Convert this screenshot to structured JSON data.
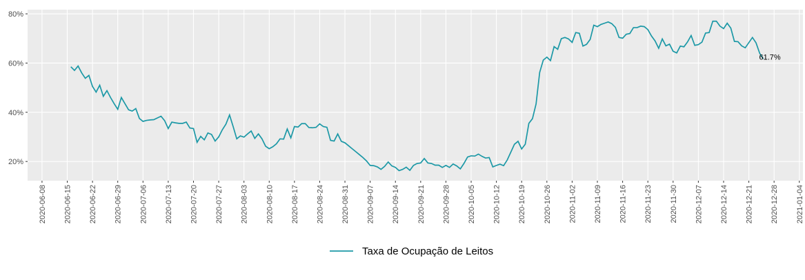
{
  "chart_data": {
    "type": "line",
    "x": [
      "2020-06-16",
      "2020-06-17",
      "2020-06-18",
      "2020-06-19",
      "2020-06-20",
      "2020-06-21",
      "2020-06-22",
      "2020-06-23",
      "2020-06-24",
      "2020-06-25",
      "2020-06-26",
      "2020-06-27",
      "2020-06-28",
      "2020-06-29",
      "2020-06-30",
      "2020-07-01",
      "2020-07-02",
      "2020-07-03",
      "2020-07-04",
      "2020-07-05",
      "2020-07-06",
      "2020-07-07",
      "2020-07-08",
      "2020-07-09",
      "2020-07-10",
      "2020-07-11",
      "2020-07-12",
      "2020-07-13",
      "2020-07-14",
      "2020-07-15",
      "2020-07-16",
      "2020-07-17",
      "2020-07-18",
      "2020-07-19",
      "2020-07-20",
      "2020-07-21",
      "2020-07-22",
      "2020-07-23",
      "2020-07-24",
      "2020-07-25",
      "2020-07-26",
      "2020-07-27",
      "2020-07-28",
      "2020-07-29",
      "2020-07-30",
      "2020-07-31",
      "2020-08-01",
      "2020-08-02",
      "2020-08-03",
      "2020-08-04",
      "2020-08-05",
      "2020-08-06",
      "2020-08-07",
      "2020-08-08",
      "2020-08-09",
      "2020-08-10",
      "2020-08-11",
      "2020-08-12",
      "2020-08-13",
      "2020-08-14",
      "2020-08-15",
      "2020-08-16",
      "2020-08-17",
      "2020-08-18",
      "2020-08-19",
      "2020-08-20",
      "2020-08-21",
      "2020-08-22",
      "2020-08-23",
      "2020-08-24",
      "2020-08-25",
      "2020-08-26",
      "2020-08-27",
      "2020-08-28",
      "2020-08-29",
      "2020-08-30",
      "2020-08-31",
      "2020-09-01",
      "2020-09-02",
      "2020-09-03",
      "2020-09-04",
      "2020-09-05",
      "2020-09-06",
      "2020-09-07",
      "2020-09-08",
      "2020-09-09",
      "2020-09-10",
      "2020-09-11",
      "2020-09-12",
      "2020-09-13",
      "2020-09-14",
      "2020-09-15",
      "2020-09-16",
      "2020-09-17",
      "2020-09-18",
      "2020-09-19",
      "2020-09-20",
      "2020-09-21",
      "2020-09-22",
      "2020-09-23",
      "2020-09-24",
      "2020-09-25",
      "2020-09-26",
      "2020-09-27",
      "2020-09-28",
      "2020-09-29",
      "2020-09-30",
      "2020-10-01",
      "2020-10-02",
      "2020-10-03",
      "2020-10-04",
      "2020-10-05",
      "2020-10-06",
      "2020-10-07",
      "2020-10-08",
      "2020-10-09",
      "2020-10-10",
      "2020-10-11",
      "2020-10-12",
      "2020-10-13",
      "2020-10-14",
      "2020-10-15",
      "2020-10-16",
      "2020-10-17",
      "2020-10-18",
      "2020-10-19",
      "2020-10-20",
      "2020-10-21",
      "2020-10-22",
      "2020-10-23",
      "2020-10-24",
      "2020-10-25",
      "2020-10-26",
      "2020-10-27",
      "2020-10-28",
      "2020-10-29",
      "2020-10-30",
      "2020-10-31",
      "2020-11-01",
      "2020-11-02",
      "2020-11-03",
      "2020-11-04",
      "2020-11-05",
      "2020-11-06",
      "2020-11-07",
      "2020-11-08",
      "2020-11-09",
      "2020-11-10",
      "2020-11-11",
      "2020-11-12",
      "2020-11-13",
      "2020-11-14",
      "2020-11-15",
      "2020-11-16",
      "2020-11-17",
      "2020-11-18",
      "2020-11-19",
      "2020-11-20",
      "2020-11-21",
      "2020-11-22",
      "2020-11-23",
      "2020-11-24",
      "2020-11-25",
      "2020-11-26",
      "2020-11-27",
      "2020-11-28",
      "2020-11-29",
      "2020-11-30",
      "2020-12-01",
      "2020-12-02",
      "2020-12-03",
      "2020-12-04",
      "2020-12-05",
      "2020-12-06",
      "2020-12-07",
      "2020-12-08",
      "2020-12-09",
      "2020-12-10",
      "2020-12-11",
      "2020-12-12",
      "2020-12-13",
      "2020-12-14",
      "2020-12-15",
      "2020-12-16",
      "2020-12-17",
      "2020-12-18",
      "2020-12-19",
      "2020-12-20",
      "2020-12-21",
      "2020-12-22",
      "2020-12-23",
      "2020-12-24",
      "2020-12-25"
    ],
    "series": [
      {
        "name": "Taxa de Ocupação de Leitos",
        "color": "#1b98a6",
        "values": [
          58.5,
          57,
          58.8,
          56,
          53.8,
          55,
          50.5,
          48.2,
          51,
          46.5,
          48.8,
          46,
          43.5,
          41.2,
          46,
          43.5,
          41,
          40.5,
          41.5,
          37.5,
          36.3,
          36.7,
          36.9,
          37,
          37.7,
          38.4,
          36.6,
          33.4,
          36,
          35.7,
          35.5,
          35.5,
          36,
          33.6,
          33.4,
          27.8,
          30.2,
          28.8,
          31.6,
          31,
          28.3,
          30,
          32.9,
          35.2,
          38.9,
          34.2,
          29.2,
          30.4,
          29.9,
          31.2,
          32.4,
          29.4,
          31.2,
          29.2,
          26.2,
          25.2,
          26,
          27.2,
          29.2,
          29.1,
          33.2,
          29.6,
          34.2,
          34,
          35.4,
          35.4,
          33.8,
          33.7,
          33.9,
          35.3,
          34.2,
          33.9,
          28.6,
          28.3,
          31.2,
          28.2,
          27.6,
          26.4,
          25.2,
          24,
          22.8,
          21.6,
          20.2,
          18.4,
          18.3,
          17.8,
          16.8,
          18,
          19.8,
          18.2,
          17.6,
          16.3,
          16.8,
          17.7,
          16.4,
          18.4,
          19.2,
          19.4,
          21.2,
          19.4,
          19.2,
          18.5,
          18.5,
          17.6,
          18.4,
          17.6,
          19,
          18.2,
          17,
          19.2,
          21.8,
          22.3,
          22.2,
          23,
          22.1,
          21.4,
          21.6,
          17.8,
          18.4,
          18.9,
          18.3,
          20.6,
          23.8,
          27,
          28.2,
          25.1,
          27,
          35.5,
          37.4,
          43.4,
          56.2,
          61.2,
          62.4,
          61,
          66.7,
          65.6,
          69.9,
          70.4,
          69.8,
          68.4,
          72.4,
          72.1,
          66.9,
          67.6,
          69.6,
          75.4,
          74.8,
          75.7,
          76.2,
          76.7,
          76,
          74.5,
          70.4,
          70.1,
          71.7,
          72,
          74.4,
          74.4,
          75,
          74.8,
          73.6,
          71,
          69,
          66,
          69.8,
          67,
          67.7,
          64.8,
          64.1,
          66.9,
          66.6,
          68.6,
          71.2,
          67.2,
          67.5,
          68.5,
          72.2,
          72.4,
          77,
          77,
          75,
          74,
          76.2,
          74.2,
          68.8,
          68.7,
          67,
          66.2,
          68.3,
          70.4,
          68.2,
          64,
          61.7
        ]
      }
    ],
    "annotations": [
      {
        "text": "61.7%",
        "x": "2020-12-25",
        "y": 61.7
      }
    ],
    "xlim": [
      "2020-06-04",
      "2021-01-05"
    ],
    "xticks": [
      "2020-06-08",
      "2020-06-15",
      "2020-06-22",
      "2020-06-29",
      "2020-07-06",
      "2020-07-13",
      "2020-07-20",
      "2020-07-27",
      "2020-08-03",
      "2020-08-10",
      "2020-08-17",
      "2020-08-24",
      "2020-08-31",
      "2020-09-07",
      "2020-09-14",
      "2020-09-21",
      "2020-09-28",
      "2020-10-05",
      "2020-10-12",
      "2020-10-19",
      "2020-10-26",
      "2020-11-02",
      "2020-11-09",
      "2020-11-16",
      "2020-11-23",
      "2020-11-30",
      "2020-12-07",
      "2020-12-14",
      "2020-12-21",
      "2020-12-28",
      "2021-01-04"
    ],
    "ylim": [
      12.2,
      81.7
    ],
    "yticks": [
      {
        "value": 20,
        "label": "20%"
      },
      {
        "value": 40,
        "label": "40%"
      },
      {
        "value": 60,
        "label": "60%"
      },
      {
        "value": 80,
        "label": "80%"
      }
    ],
    "grid": true,
    "legend": "bottom"
  }
}
